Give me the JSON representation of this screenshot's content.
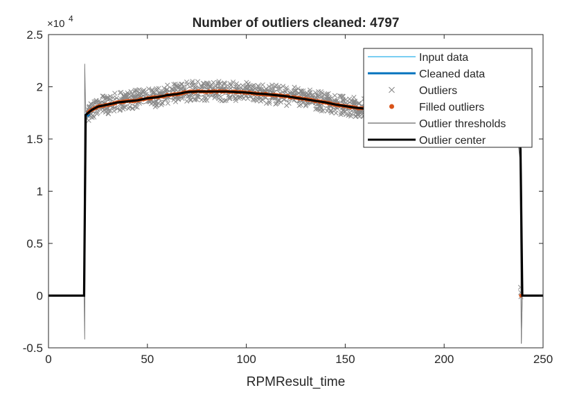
{
  "chart_data": {
    "type": "line",
    "title": "Number of outliers cleaned: 4797",
    "xlabel": "RPMResult_time",
    "ylabel": "",
    "xlim": [
      0,
      250
    ],
    "ylim": [
      -5000,
      25000
    ],
    "xticks": [
      0,
      50,
      100,
      150,
      200,
      250
    ],
    "xtick_labels": [
      "0",
      "50",
      "100",
      "150",
      "200",
      "250"
    ],
    "yticks": [
      -5000,
      0,
      5000,
      10000,
      15000,
      20000,
      25000
    ],
    "ytick_labels": [
      "-0.5",
      "0",
      "0.5",
      "1",
      "1.5",
      "2",
      "2.5"
    ],
    "y_exponent_base": "×10",
    "y_exponent_power": "4",
    "grid": false,
    "legend_position": "top-right",
    "series": [
      {
        "name": "Input data",
        "color": "#4DBEEE",
        "x": [
          0,
          18,
          18.8,
          20,
          25,
          30,
          40,
          50,
          60,
          70,
          80,
          90,
          100,
          110,
          120,
          130,
          140,
          150,
          160,
          170,
          180,
          190,
          200,
          210,
          220,
          230,
          237,
          238.6,
          239.5,
          250
        ],
        "y": [
          0,
          0,
          17400,
          17600,
          18000,
          18300,
          18600,
          18900,
          19200,
          19500,
          19600,
          19600,
          19500,
          19300,
          19100,
          18800,
          18500,
          18200,
          17900,
          17700,
          17600,
          17500,
          17500,
          17500,
          17400,
          17300,
          17000,
          14000,
          0,
          0
        ]
      },
      {
        "name": "Cleaned data",
        "color": "#0072BD",
        "x": [
          0,
          18,
          18.8,
          20,
          25,
          30,
          40,
          50,
          60,
          70,
          80,
          90,
          100,
          110,
          120,
          130,
          140,
          150,
          160,
          170,
          180,
          190,
          200,
          210,
          220,
          230,
          237,
          238.6,
          239.5,
          250
        ],
        "y": [
          0,
          0,
          17300,
          17500,
          18000,
          18300,
          18600,
          18900,
          19200,
          19500,
          19550,
          19550,
          19450,
          19300,
          19100,
          18800,
          18500,
          18150,
          17900,
          17700,
          17600,
          17500,
          17500,
          17500,
          17400,
          17300,
          17000,
          14000,
          0,
          0
        ]
      },
      {
        "name": "Outlier center",
        "color": "#000000",
        "x": [
          0,
          18,
          18.8,
          20,
          22,
          25,
          30,
          35,
          40,
          45,
          50,
          55,
          60,
          65,
          70,
          75,
          80,
          85,
          90,
          95,
          100,
          105,
          110,
          115,
          120,
          125,
          130,
          135,
          140,
          145,
          150,
          155,
          160,
          165,
          170,
          180,
          190,
          200,
          210,
          220,
          230,
          237,
          238.6,
          239.5,
          250
        ],
        "y": [
          0,
          0,
          17300,
          17500,
          17800,
          18100,
          18300,
          18500,
          18600,
          18700,
          18900,
          19000,
          19200,
          19300,
          19500,
          19550,
          19550,
          19550,
          19550,
          19500,
          19450,
          19350,
          19300,
          19200,
          19100,
          18950,
          18800,
          18650,
          18500,
          18300,
          18150,
          18000,
          17900,
          17800,
          17700,
          17600,
          17500,
          17500,
          17500,
          17400,
          17300,
          17000,
          14000,
          0,
          0
        ]
      }
    ],
    "outlier_band": {
      "names": [
        "Outliers",
        "Filled outliers",
        "Outlier thresholds"
      ],
      "x_start": 20,
      "x_end": 237,
      "spread_above": 1000,
      "spread_below": 900,
      "threshold_spike_up": 22200,
      "threshold_spike_down": -4200,
      "threshold_spike_up_right": 19000,
      "threshold_spike_down_right": -4600
    },
    "legend": [
      {
        "name": "Input data",
        "style": "line",
        "color": "#4DBEEE"
      },
      {
        "name": "Cleaned data",
        "style": "thick-line",
        "color": "#0072BD"
      },
      {
        "name": "Outliers",
        "style": "x-marker",
        "color": "#808080"
      },
      {
        "name": "Filled outliers",
        "style": "dot-marker",
        "color": "#D95319"
      },
      {
        "name": "Outlier thresholds",
        "style": "line",
        "color": "#808080"
      },
      {
        "name": "Outlier center",
        "style": "thick-line",
        "color": "#000000"
      }
    ]
  }
}
